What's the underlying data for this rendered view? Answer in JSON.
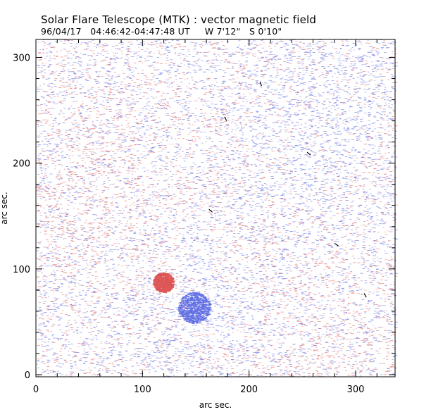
{
  "title": "Solar Flare Telescope (MTK) : vector magnetic field",
  "subtitle": {
    "date": "96/04/17",
    "time_range": "04:46:42-04:47:48 UT",
    "longitude": "W 7'12\"",
    "latitude": "S 0'10\""
  },
  "colors": {
    "positive_field": "#d83c3c",
    "negative_field": "#4a5ae0",
    "transverse_vector": "#000000",
    "frame": "#000000",
    "background": "#ffffff"
  },
  "chart_data": {
    "type": "heatmap",
    "description_kind": "vector magnetogram",
    "xlabel": "arc sec.",
    "ylabel": "arc sec.",
    "xlim": [
      0,
      337
    ],
    "ylim": [
      -2,
      317
    ],
    "xticks": [
      0,
      100,
      200,
      300
    ],
    "yticks": [
      0,
      100,
      200,
      300
    ],
    "xtick_labels": [
      "0",
      "100",
      "200",
      "300"
    ],
    "ytick_labels": [
      "0",
      "100",
      "200",
      "300"
    ],
    "polarity_regions": [
      {
        "name": "positive-spot",
        "polarity": "positive",
        "x": 119,
        "y": 87,
        "radius": 7,
        "strength": 1.0
      },
      {
        "name": "negative-spot",
        "polarity": "negative",
        "x": 148,
        "y": 63,
        "radius": 11,
        "strength": 1.0
      },
      {
        "name": "negative-halo",
        "polarity": "negative",
        "x": 150,
        "y": 65,
        "radius": 45,
        "strength": 0.35
      },
      {
        "name": "negative-plage-ne",
        "polarity": "negative",
        "x": 250,
        "y": 230,
        "radius": 55,
        "strength": 0.45
      },
      {
        "name": "negative-plage-top",
        "polarity": "negative",
        "x": 300,
        "y": 290,
        "radius": 45,
        "strength": 0.35
      },
      {
        "name": "negative-patch-bottom",
        "polarity": "negative",
        "x": 145,
        "y": 18,
        "radius": 12,
        "strength": 0.3
      },
      {
        "name": "positive-plage-west",
        "polarity": "positive",
        "x": 45,
        "y": 170,
        "radius": 70,
        "strength": 0.22
      },
      {
        "name": "positive-plage-sw",
        "polarity": "positive",
        "x": 270,
        "y": 10,
        "radius": 45,
        "strength": 0.25
      }
    ],
    "transverse_vectors": [
      {
        "x": 211,
        "y": 275,
        "angle_deg": 70
      },
      {
        "x": 178,
        "y": 242,
        "angle_deg": 65
      },
      {
        "x": 256,
        "y": 209,
        "angle_deg": 40
      },
      {
        "x": 164,
        "y": 155,
        "angle_deg": 40
      },
      {
        "x": 282,
        "y": 123,
        "angle_deg": 35
      },
      {
        "x": 309,
        "y": 75,
        "angle_deg": 60
      }
    ]
  }
}
